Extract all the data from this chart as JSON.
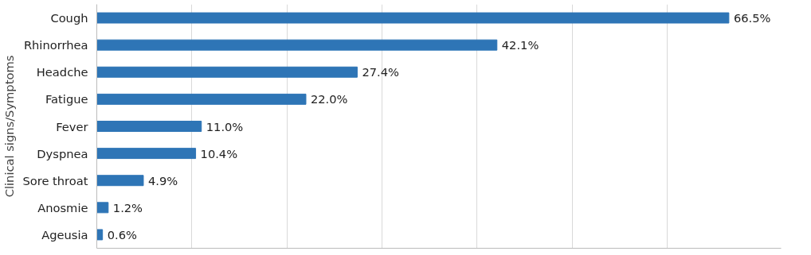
{
  "chart_data": {
    "type": "bar",
    "orientation": "horizontal",
    "ylabel": "Clinical signs/Symptoms",
    "categories": [
      "Cough",
      "Rhinorrhea",
      "Headche",
      "Fatigue",
      "Fever",
      "Dyspnea",
      "Sore throat",
      "Anosmie",
      "Ageusia"
    ],
    "values": [
      66.5,
      42.1,
      27.4,
      22.0,
      11.0,
      10.4,
      4.9,
      1.2,
      0.6
    ],
    "value_labels": [
      "66.5%",
      "42.1%",
      "27.4%",
      "22.0%",
      "11.0%",
      "10.4%",
      "4.9%",
      "1.2%",
      "0.6%"
    ],
    "color": "#2e75b6",
    "xlim": [
      0,
      72
    ],
    "xticks": [
      {
        "value": 0,
        "label": null
      },
      {
        "value": 10,
        "label": null
      },
      {
        "value": 20,
        "label": null
      },
      {
        "value": 30,
        "label": null
      },
      {
        "value": 40,
        "label": null
      },
      {
        "value": 50,
        "label": null
      },
      {
        "value": 60,
        "label": null
      }
    ],
    "grid": "x",
    "tick_labels": "y"
  }
}
